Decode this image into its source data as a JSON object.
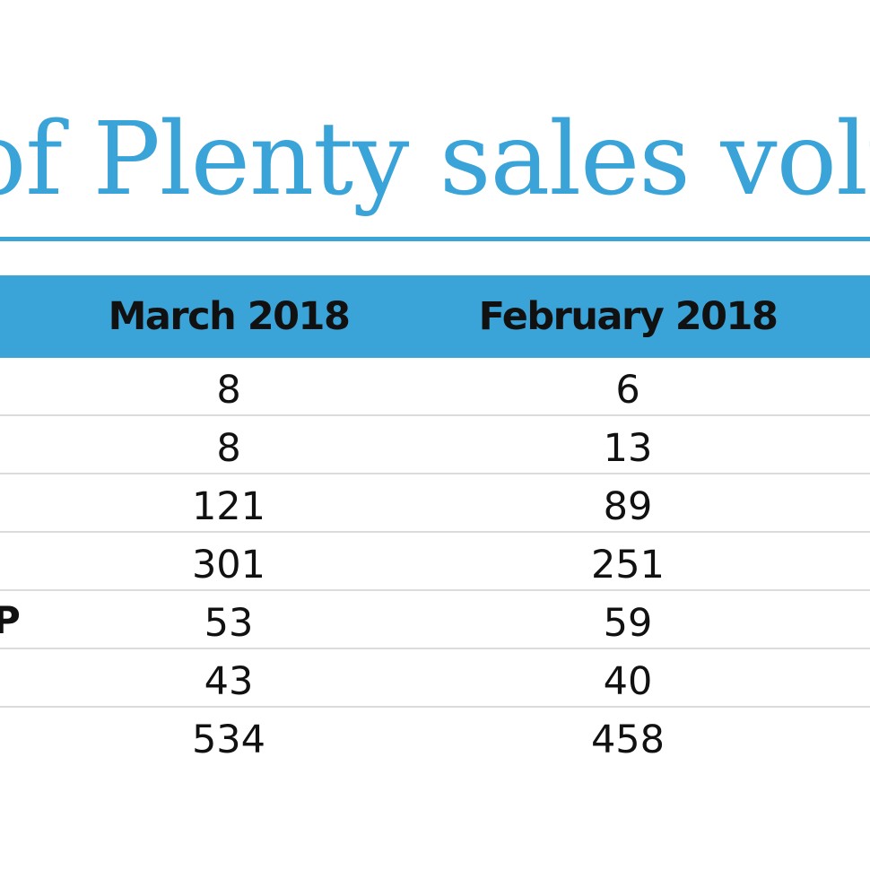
{
  "title": "of Plenty sales volu",
  "chart_data": {
    "type": "table",
    "title": "of Plenty sales volu",
    "columns": [
      "March 2018",
      "February 2018"
    ],
    "rows": [
      {
        "label": "",
        "values": [
          "8",
          "6"
        ]
      },
      {
        "label": "",
        "values": [
          "8",
          "13"
        ]
      },
      {
        "label": "",
        "values": [
          "121",
          "89"
        ]
      },
      {
        "label": "",
        "values": [
          "301",
          "251"
        ]
      },
      {
        "label": "P",
        "values": [
          "53",
          "59"
        ]
      },
      {
        "label": "",
        "values": [
          "43",
          "40"
        ]
      },
      {
        "label": "",
        "values": [
          "534",
          "458"
        ]
      }
    ]
  },
  "colors": {
    "accent": "#3aa3d8",
    "text": "#111111",
    "divider": "#dcdcdc"
  }
}
